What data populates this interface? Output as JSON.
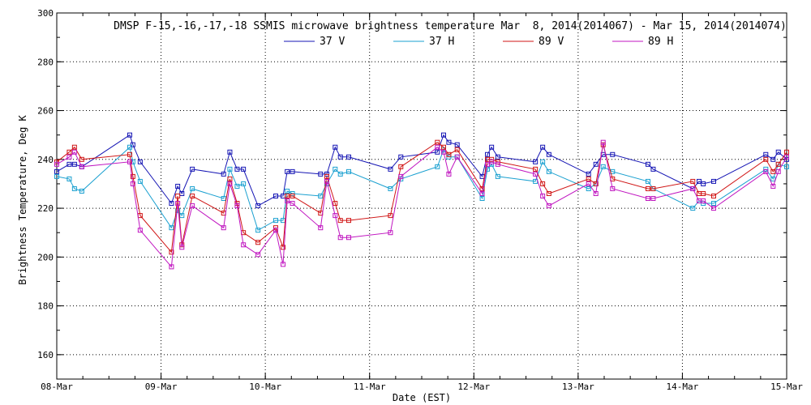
{
  "chart_data": {
    "type": "line",
    "title": "DMSP F-15,-16,-17,-18 SSMIS microwave brightness temperature Mar  8, 2014(2014067) - Mar 15, 2014(2014074)",
    "xlabel": "Date (EST)",
    "ylabel": "Brightness Temperature, Deg K",
    "xlim": [
      0,
      7
    ],
    "ylim": [
      150,
      300
    ],
    "x_ticks": [
      {
        "value": 0,
        "label": "08-Mar"
      },
      {
        "value": 1,
        "label": "09-Mar"
      },
      {
        "value": 2,
        "label": "10-Mar"
      },
      {
        "value": 3,
        "label": "11-Mar"
      },
      {
        "value": 4,
        "label": "12-Mar"
      },
      {
        "value": 5,
        "label": "13-Mar"
      },
      {
        "value": 6,
        "label": "14-Mar"
      },
      {
        "value": 7,
        "label": "15-Mar"
      }
    ],
    "y_ticks": [
      {
        "value": 160,
        "label": "160"
      },
      {
        "value": 180,
        "label": "180"
      },
      {
        "value": 200,
        "label": "200"
      },
      {
        "value": 220,
        "label": "220"
      },
      {
        "value": 240,
        "label": "240"
      },
      {
        "value": 260,
        "label": "260"
      },
      {
        "value": 280,
        "label": "280"
      },
      {
        "value": 300,
        "label": "300"
      }
    ],
    "grid": true,
    "legend_position": "top-center",
    "series": [
      {
        "name": "37 V",
        "color": "#1515b4",
        "x": [
          0.0,
          0.12,
          0.17,
          0.24,
          0.7,
          0.73,
          0.8,
          1.1,
          1.16,
          1.2,
          1.3,
          1.6,
          1.66,
          1.73,
          1.79,
          1.93,
          2.1,
          2.17,
          2.21,
          2.26,
          2.53,
          2.59,
          2.67,
          2.72,
          2.8,
          3.2,
          3.3,
          3.65,
          3.71,
          3.76,
          3.84,
          4.08,
          4.13,
          4.17,
          4.23,
          4.59,
          4.66,
          4.72,
          5.1,
          5.17,
          5.24,
          5.33,
          5.67,
          5.72,
          6.1,
          6.16,
          6.2,
          6.3,
          6.8,
          6.87,
          6.92,
          7.0
        ],
        "values": [
          235,
          238,
          238,
          237,
          250,
          246,
          239,
          222,
          229,
          226,
          236,
          234,
          243,
          236,
          236,
          221,
          225,
          225,
          235,
          235,
          234,
          234,
          245,
          241,
          241,
          236,
          241,
          243,
          250,
          247,
          246,
          233,
          242,
          245,
          241,
          239,
          245,
          242,
          234,
          238,
          242,
          242,
          238,
          236,
          228,
          231,
          230,
          231,
          242,
          240,
          243,
          240
        ]
      },
      {
        "name": "37 H",
        "color": "#1aa0d0",
        "x": [
          0.0,
          0.12,
          0.17,
          0.24,
          0.7,
          0.73,
          0.8,
          1.1,
          1.16,
          1.2,
          1.3,
          1.6,
          1.66,
          1.73,
          1.79,
          1.93,
          2.1,
          2.17,
          2.21,
          2.26,
          2.53,
          2.59,
          2.67,
          2.72,
          2.8,
          3.2,
          3.3,
          3.65,
          3.71,
          3.76,
          3.84,
          4.08,
          4.13,
          4.17,
          4.23,
          4.59,
          4.66,
          4.72,
          5.1,
          5.17,
          5.24,
          5.33,
          5.67,
          5.72,
          6.1,
          6.16,
          6.2,
          6.3,
          6.8,
          6.87,
          6.92,
          7.0
        ],
        "values": [
          233,
          232,
          228,
          227,
          245,
          239,
          231,
          212,
          219,
          217,
          228,
          224,
          236,
          229,
          230,
          211,
          215,
          215,
          227,
          226,
          225,
          230,
          236,
          234,
          235,
          228,
          232,
          237,
          244,
          241,
          241,
          224,
          236,
          238,
          233,
          231,
          239,
          235,
          228,
          230,
          237,
          235,
          231,
          228,
          220,
          223,
          222,
          222,
          236,
          232,
          238,
          237
        ]
      },
      {
        "name": "89 V",
        "color": "#d01515",
        "x": [
          0.0,
          0.12,
          0.17,
          0.24,
          0.7,
          0.73,
          0.8,
          1.1,
          1.16,
          1.2,
          1.3,
          1.6,
          1.66,
          1.73,
          1.79,
          1.93,
          2.1,
          2.17,
          2.21,
          2.26,
          2.53,
          2.59,
          2.67,
          2.72,
          2.8,
          3.2,
          3.3,
          3.65,
          3.71,
          3.76,
          3.84,
          4.08,
          4.13,
          4.17,
          4.23,
          4.59,
          4.66,
          4.72,
          5.1,
          5.17,
          5.24,
          5.33,
          5.67,
          5.72,
          6.1,
          6.16,
          6.2,
          6.3,
          6.8,
          6.87,
          6.92,
          7.0
        ],
        "values": [
          239,
          243,
          245,
          240,
          242,
          233,
          217,
          202,
          225,
          205,
          225,
          218,
          232,
          222,
          210,
          206,
          212,
          204,
          225,
          225,
          218,
          233,
          222,
          215,
          215,
          217,
          237,
          247,
          245,
          242,
          244,
          228,
          240,
          240,
          239,
          236,
          230,
          226,
          232,
          230,
          246,
          232,
          228,
          228,
          231,
          226,
          226,
          225,
          240,
          235,
          238,
          243
        ]
      },
      {
        "name": "89 H",
        "color": "#c015c0",
        "x": [
          0.0,
          0.12,
          0.17,
          0.24,
          0.7,
          0.73,
          0.8,
          1.1,
          1.16,
          1.2,
          1.3,
          1.6,
          1.66,
          1.73,
          1.79,
          1.93,
          2.1,
          2.17,
          2.21,
          2.26,
          2.53,
          2.59,
          2.67,
          2.72,
          2.8,
          3.2,
          3.3,
          3.65,
          3.71,
          3.76,
          3.84,
          4.08,
          4.13,
          4.17,
          4.23,
          4.59,
          4.66,
          4.72,
          5.1,
          5.17,
          5.24,
          5.33,
          5.67,
          5.72,
          6.1,
          6.16,
          6.2,
          6.3,
          6.8,
          6.87,
          6.92,
          7.0
        ],
        "values": [
          238,
          241,
          243,
          237,
          239,
          230,
          211,
          196,
          222,
          204,
          221,
          212,
          230,
          221,
          205,
          201,
          211,
          197,
          223,
          222,
          212,
          231,
          217,
          208,
          208,
          210,
          233,
          245,
          243,
          234,
          241,
          226,
          238,
          239,
          238,
          234,
          225,
          221,
          230,
          226,
          247,
          228,
          224,
          224,
          228,
          223,
          223,
          220,
          235,
          229,
          235,
          241
        ]
      }
    ]
  }
}
